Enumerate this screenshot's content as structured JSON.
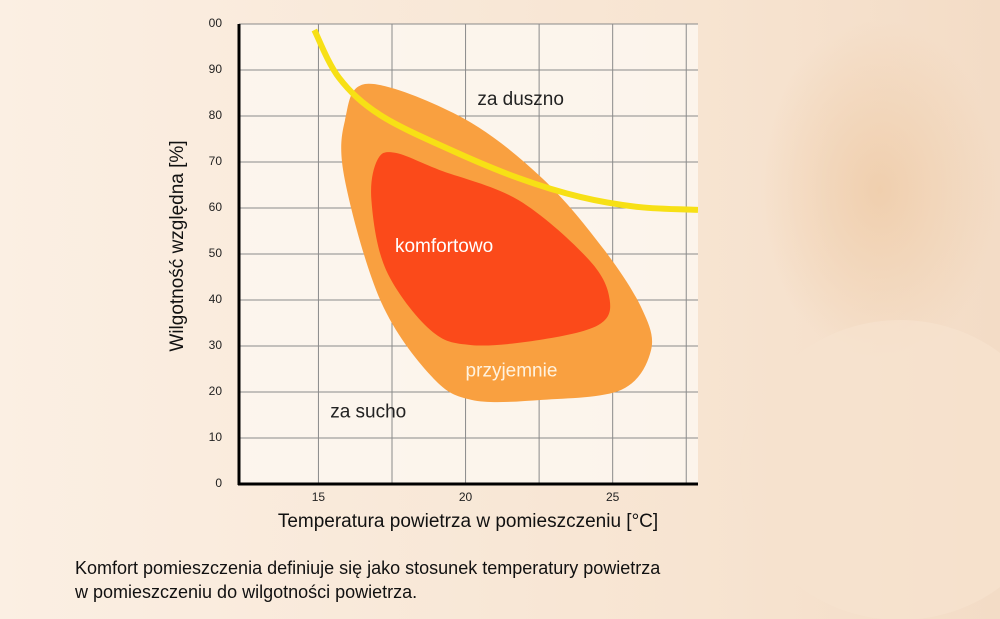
{
  "chart_data": {
    "type": "area",
    "xlabel": "Temperatura powietrza w pomieszczeniu [°C]",
    "ylabel": "Wilgotność względna [%]",
    "xlim": [
      12.3,
      27.9
    ],
    "ylim": [
      0,
      100
    ],
    "xticks": [
      15,
      20,
      25
    ],
    "x_gridlines": [
      15,
      17.5,
      20,
      22.5,
      25,
      27.5
    ],
    "yticks": [
      0,
      10,
      20,
      30,
      40,
      50,
      60,
      70,
      80,
      90,
      {
        "value": 100,
        "label": "00"
      }
    ],
    "grid": true,
    "regions": [
      {
        "color": "#f9a040",
        "x": [
          16.7,
          19.9,
          22.6,
          24.7,
          26.0,
          26.3,
          25.3,
          22.6,
          20.2,
          18.8,
          17.1,
          15.9,
          15.9
        ],
        "y": [
          87,
          79.6,
          66.5,
          51,
          38,
          29,
          20.5,
          18.3,
          18.3,
          23.7,
          40,
          66,
          79
        ]
      },
      {
        "color": "#fb4a1a",
        "x": [
          17.6,
          19.1,
          21.8,
          24.2,
          24.9,
          24.5,
          22.5,
          20.2,
          18.8,
          17.3,
          16.8,
          17.0
        ],
        "y": [
          72,
          68.3,
          61.7,
          48.7,
          40,
          34.5,
          31.3,
          30.2,
          33.5,
          46.5,
          61.7,
          70.4
        ]
      }
    ],
    "curve": {
      "color": "#f7e015",
      "x": [
        14.86,
        15.7,
        17.1,
        19.5,
        21.8,
        23.9,
        25.9,
        27.9
      ],
      "y": [
        98.7,
        88.3,
        80.2,
        72.6,
        66.5,
        62.4,
        60.2,
        59.6
      ]
    },
    "annotations": [
      {
        "text": "za duszno",
        "x": 20.4,
        "y": 83.5,
        "color": "#222222"
      },
      {
        "text": "komfortowo",
        "x": 17.6,
        "y": 51.5,
        "color": "#ffffff"
      },
      {
        "text": "przyjemnie",
        "x": 20.0,
        "y": 24.5,
        "color": "#fff3e0"
      },
      {
        "text": "za sucho",
        "x": 15.4,
        "y": 15.5,
        "color": "#222222"
      }
    ],
    "caption": [
      "Komfort pomieszczenia definiuje się jako stosunek temperatury powietrza",
      "w pomieszczeniu do wilgotności powietrza."
    ]
  }
}
